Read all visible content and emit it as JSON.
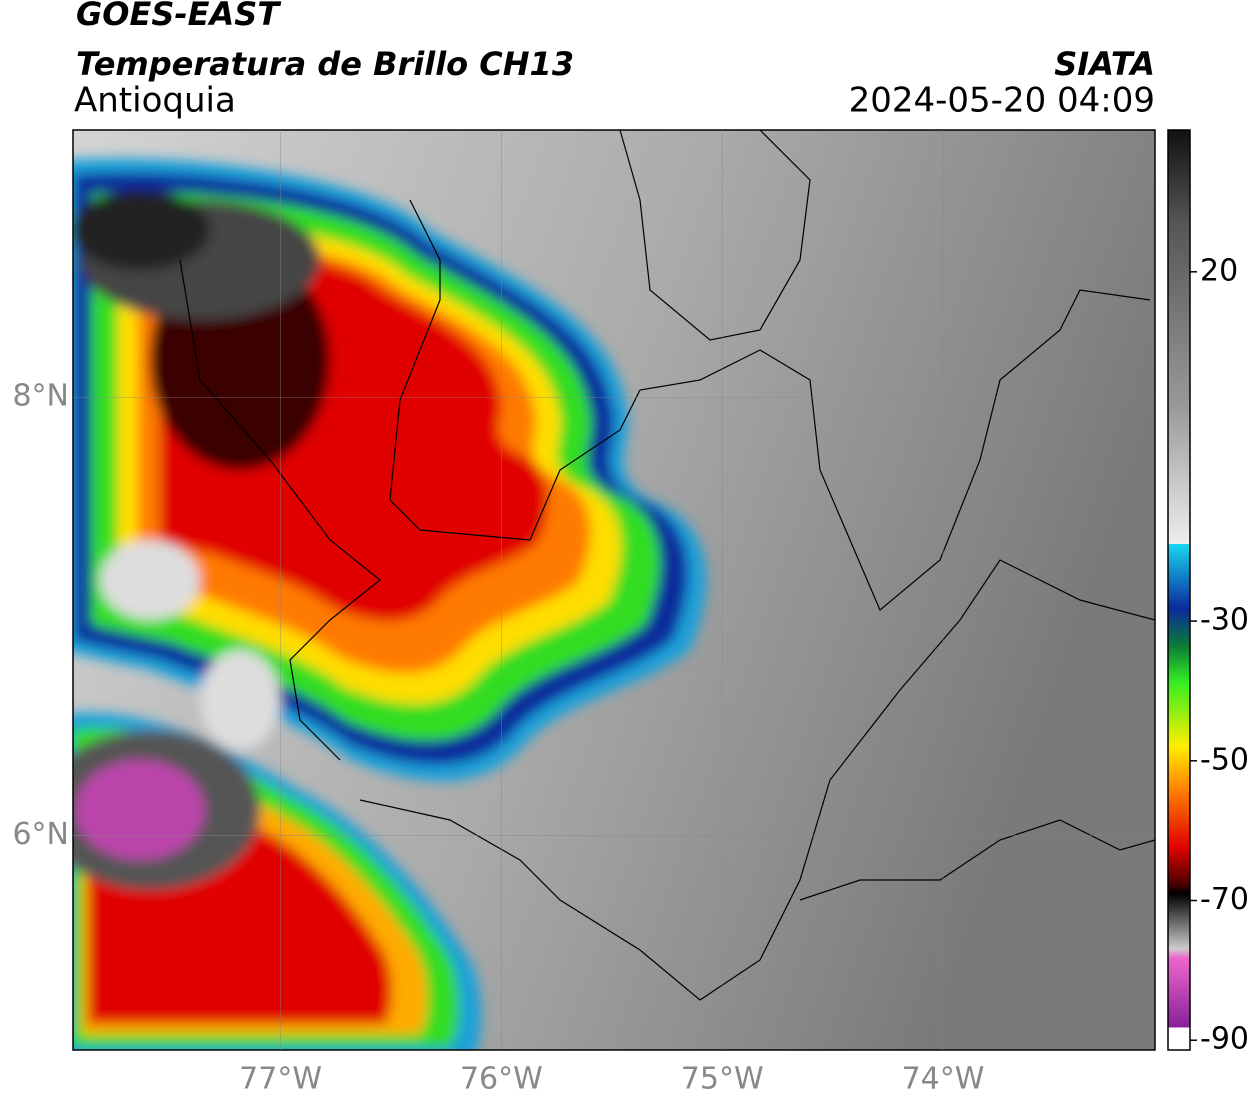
{
  "header": {
    "title": "GOES-EAST",
    "subtitle": "Temperatura de Brillo CH13",
    "region": "Antioquia",
    "source": "SIATA",
    "datetime": "2024-05-20 04:09"
  },
  "map": {
    "xlim": [
      -77.94,
      -73.04
    ],
    "ylim": [
      5.02,
      9.22
    ],
    "xticks": [
      {
        "value": -77,
        "label": "77°W"
      },
      {
        "value": -76,
        "label": "76°W"
      },
      {
        "value": -75,
        "label": "75°W"
      },
      {
        "value": -74,
        "label": "74°W"
      }
    ],
    "yticks": [
      {
        "value": 8,
        "label": "8°N"
      },
      {
        "value": 6,
        "label": "6°N"
      }
    ],
    "grid": true
  },
  "colorbar": {
    "lim": [
      -91.4,
      40.3
    ],
    "ticks": [
      20,
      -30,
      -50,
      -70,
      -90
    ]
  }
}
